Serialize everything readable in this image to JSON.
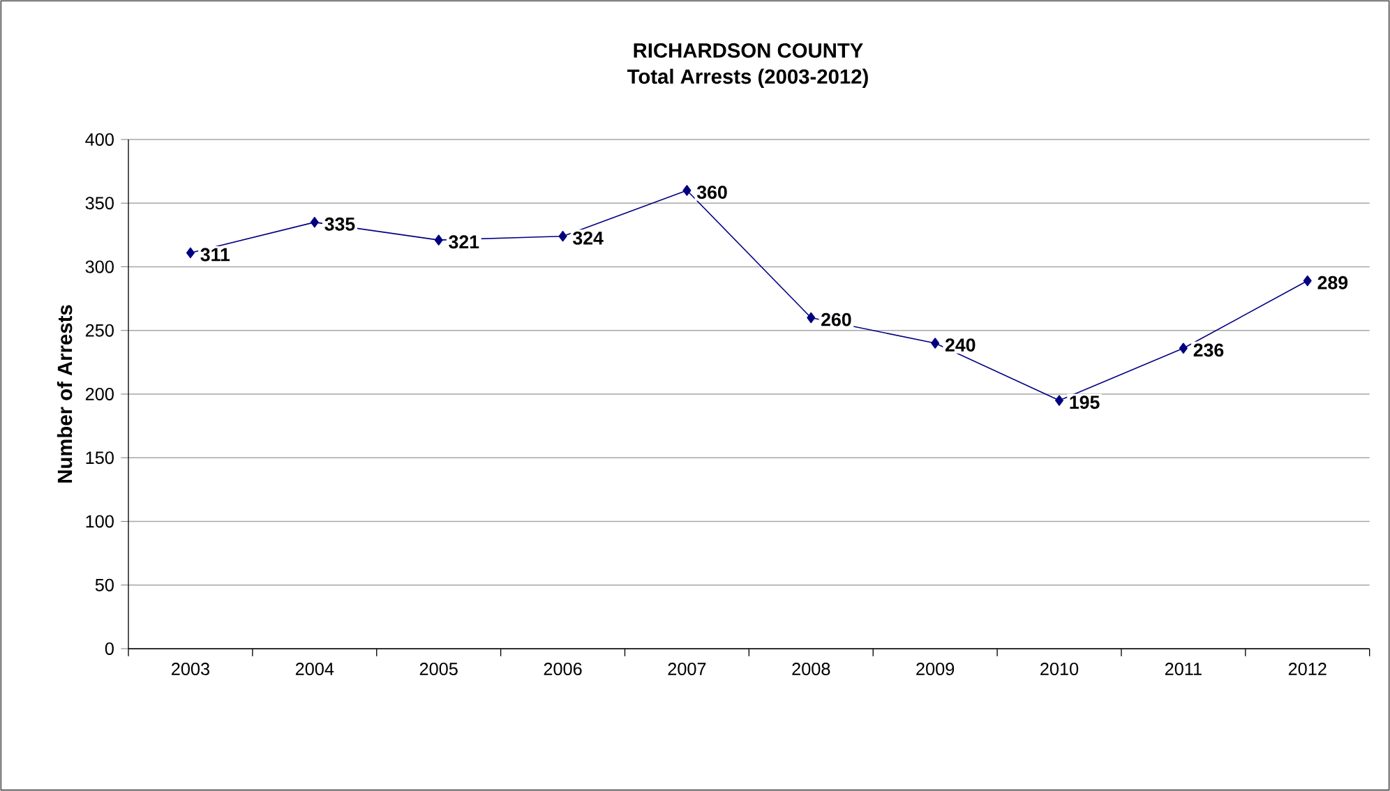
{
  "chart_data": {
    "type": "line",
    "title": "RICHARDSON COUNTY",
    "subtitle": "Total Arrests (2003-2012)",
    "ylabel": "Number of Arrests",
    "categories": [
      "2003",
      "2004",
      "2005",
      "2006",
      "2007",
      "2008",
      "2009",
      "2010",
      "2011",
      "2012"
    ],
    "values": [
      311,
      335,
      321,
      324,
      360,
      260,
      240,
      195,
      236,
      289
    ],
    "color": "#000080",
    "marker": "diamond",
    "data_labels": true,
    "grid": "y",
    "ylim": [
      0,
      400
    ],
    "yticks": [
      0,
      50,
      100,
      150,
      200,
      250,
      300,
      350,
      400
    ]
  }
}
